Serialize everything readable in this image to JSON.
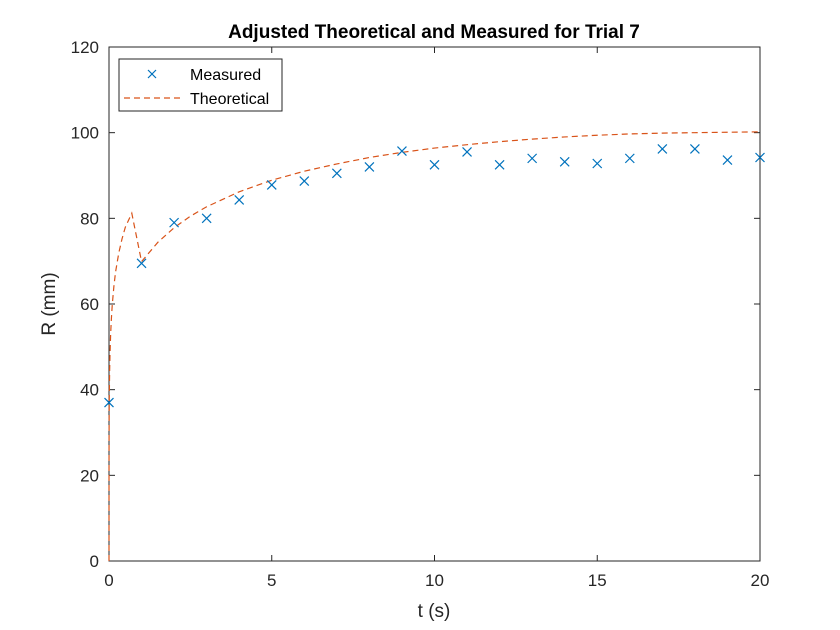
{
  "chart_data": {
    "type": "scatter",
    "title": "Adjusted Theoretical and Measured for Trial 7",
    "xlabel": "t (s)",
    "ylabel": "R (mm)",
    "xlim": [
      0,
      20
    ],
    "ylim": [
      0,
      120
    ],
    "xticks": [
      0,
      5,
      10,
      15,
      20
    ],
    "xtick_labels": [
      "0",
      "5",
      "10",
      "15",
      "20"
    ],
    "yticks": [
      0,
      20,
      40,
      60,
      80,
      100,
      120
    ],
    "ytick_labels": [
      "0",
      "20",
      "40",
      "60",
      "80",
      "100",
      "120"
    ],
    "grid": false,
    "legend_position": "top-left",
    "series": [
      {
        "name": "Measured",
        "kind": "marker",
        "marker": "x",
        "color": "#0072BD",
        "x": [
          0,
          1,
          2,
          3,
          4,
          5,
          6,
          7,
          8,
          9,
          10,
          11,
          12,
          13,
          14,
          15,
          16,
          17,
          18,
          19,
          20
        ],
        "y": [
          37,
          69.5,
          79,
          80,
          84.3,
          87.8,
          88.7,
          90.5,
          92,
          95.7,
          92.5,
          95.5,
          92.5,
          94,
          93.2,
          92.8,
          94,
          96.2,
          96.2,
          93.6,
          94.2
        ]
      },
      {
        "name": "Theoretical",
        "kind": "line",
        "dash": "dashed",
        "color": "#D95319",
        "x": [
          0,
          0.0005,
          0.002,
          0.005,
          0.01,
          0.02,
          0.03,
          0.05,
          0.075,
          0.1,
          0.15,
          0.2,
          0.3,
          0.4,
          0.5,
          0.7,
          1,
          1.5,
          2,
          2.5,
          3,
          4,
          5,
          6,
          7,
          8,
          9,
          10,
          11,
          12,
          13,
          14,
          15,
          16,
          17,
          18,
          19,
          20
        ],
        "y": [
          0,
          21.7,
          28.7,
          34.4,
          39.1,
          44.6,
          48.1,
          52.9,
          56.8,
          59.8,
          64.1,
          67.4,
          71.9,
          75.2,
          77.9,
          81.2,
          69.9,
          74.4,
          77.8,
          80.5,
          82.7,
          86.2,
          88.9,
          91,
          92.7,
          94.2,
          95.4,
          96.4,
          97.2,
          97.9,
          98.5,
          99,
          99.4,
          99.7,
          99.9,
          100,
          100.1,
          100.2
        ]
      }
    ]
  }
}
